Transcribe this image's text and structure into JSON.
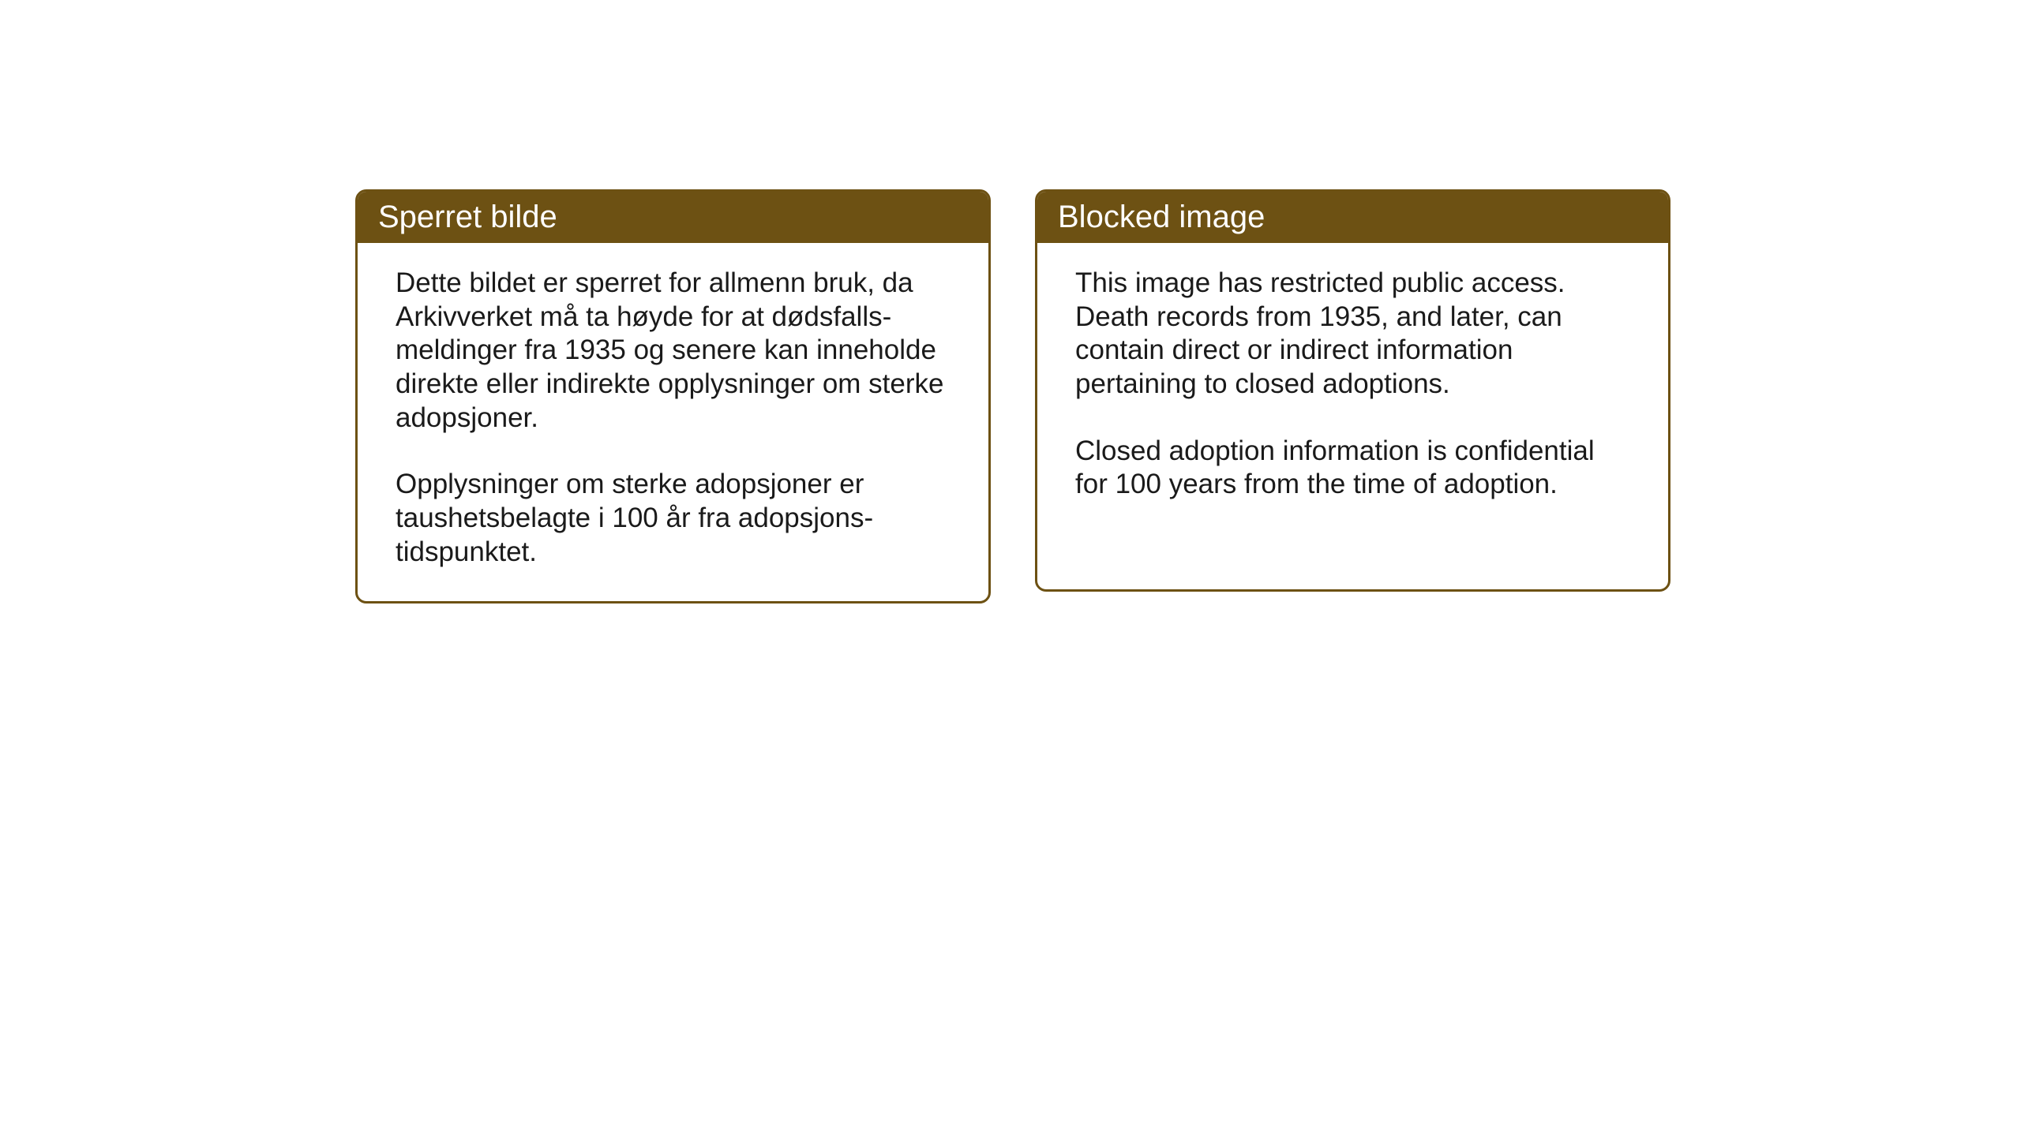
{
  "cards": {
    "left": {
      "title": "Sperret bilde",
      "paragraph1": "Dette bildet er sperret for allmenn bruk, da Arkivverket må ta høyde for at dødsfalls-meldinger fra 1935 og senere kan inneholde direkte eller indirekte opplysninger om sterke adopsjoner.",
      "paragraph2": "Opplysninger om sterke adopsjoner er taushetsbelagte i 100 år fra adopsjons-tidspunktet."
    },
    "right": {
      "title": "Blocked image",
      "paragraph1": "This image has restricted public access. Death records from 1935, and later, can contain direct or indirect information pertaining to closed adoptions.",
      "paragraph2": "Closed adoption information is confidential for 100 years from the time of adoption."
    }
  },
  "styling": {
    "header_background": "#6d5113",
    "header_text_color": "#ffffff",
    "border_color": "#6d5113",
    "body_background": "#ffffff",
    "body_text_color": "#1a1a1a",
    "title_fontsize": 40,
    "body_fontsize": 35,
    "border_radius": 14,
    "border_width": 3
  }
}
